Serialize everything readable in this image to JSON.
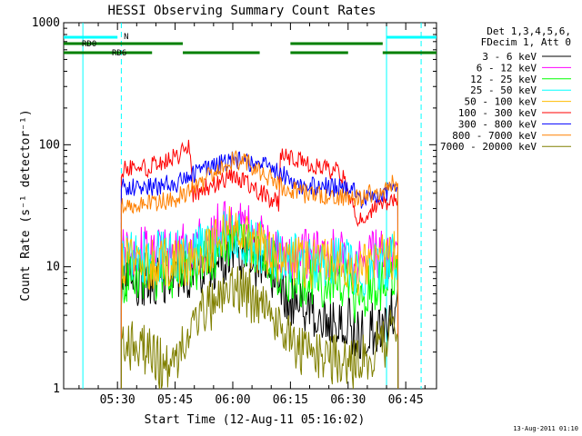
{
  "chart_data": {
    "type": "line",
    "title": "HESSI Observing Summary Count Rates",
    "xlabel": "Start Time (12-Aug-11 05:16:02)",
    "ylabel": "Count Rate (s⁻¹ detector⁻¹)",
    "y_scale": "log",
    "ylim": [
      1,
      1000
    ],
    "y_ticks": [
      "1",
      "10",
      "100",
      "1000"
    ],
    "x_range_minutes": [
      "05:16",
      "06:53"
    ],
    "x_ticks": [
      "05:30",
      "05:45",
      "06:00",
      "06:15",
      "06:30",
      "06:45"
    ],
    "footer_date": "13-Aug-2011 01:10",
    "legend": {
      "header_line1": "Det 1,3,4,5,6,",
      "header_line2": "FDecim 1, Att 0",
      "placement": "right"
    },
    "series": [
      {
        "name": "3 - 6 keV",
        "color": "#000000",
        "x": [
          "05:31",
          "05:38",
          "05:45",
          "05:52",
          "05:56",
          "06:00",
          "06:04",
          "06:08",
          "06:12",
          "06:15",
          "06:20",
          "06:25",
          "06:30",
          "06:32",
          "06:36",
          "06:41",
          "06:43"
        ],
        "values": [
          7,
          8,
          8,
          9.5,
          11,
          13,
          12,
          9,
          6.5,
          5,
          4.5,
          4,
          3.8,
          2.7,
          3,
          4,
          5
        ]
      },
      {
        "name": "6 - 12 keV",
        "color": "#ff00ff",
        "x": [
          "05:31",
          "05:38",
          "05:45",
          "05:52",
          "05:56",
          "06:00",
          "06:04",
          "06:08",
          "06:12",
          "06:15",
          "06:20",
          "06:25",
          "06:30",
          "06:32",
          "06:36",
          "06:41",
          "06:43"
        ],
        "values": [
          13,
          13,
          13,
          16,
          20,
          23,
          20,
          16,
          14,
          13,
          12.5,
          12.5,
          12.5,
          9.5,
          12,
          13,
          14
        ]
      },
      {
        "name": "12 - 25 keV",
        "color": "#00ff00",
        "x": [
          "05:31",
          "05:38",
          "05:45",
          "05:52",
          "05:56",
          "06:00",
          "06:04",
          "06:08",
          "06:12",
          "06:15",
          "06:20",
          "06:25",
          "06:30",
          "06:32",
          "06:36",
          "06:41",
          "06:43"
        ],
        "values": [
          8,
          8.5,
          9,
          11,
          13.5,
          16,
          14.5,
          12,
          9.5,
          8,
          7.5,
          7.5,
          7.5,
          5.5,
          6.5,
          8,
          9
        ]
      },
      {
        "name": "25 - 50 keV",
        "color": "#00ffff",
        "x": [
          "05:31",
          "05:38",
          "05:45",
          "05:52",
          "05:56",
          "06:00",
          "06:04",
          "06:08",
          "06:12",
          "06:15",
          "06:20",
          "06:25",
          "06:30",
          "06:32",
          "06:36",
          "06:41",
          "06:43"
        ],
        "values": [
          12,
          12,
          12,
          14,
          17,
          19,
          16.5,
          14,
          12,
          11.5,
          11,
          11,
          11,
          8.5,
          9.5,
          11,
          12
        ]
      },
      {
        "name": "50 - 100 keV",
        "color": "#ffbb00",
        "x": [
          "05:31",
          "05:38",
          "05:45",
          "05:52",
          "05:56",
          "06:00",
          "06:04",
          "06:08",
          "06:12",
          "06:15",
          "06:20",
          "06:25",
          "06:30",
          "06:32",
          "06:36",
          "06:41",
          "06:43"
        ],
        "values": [
          10.5,
          10.5,
          10.5,
          12.5,
          16,
          21,
          17,
          13,
          11,
          10.5,
          10.5,
          10.5,
          10.5,
          8.5,
          10.5,
          12.5,
          14
        ]
      },
      {
        "name": "100 - 300 keV",
        "color": "#ff0000",
        "x": [
          "05:31",
          "05:38",
          "05:45",
          "05:49",
          "05:49.5",
          "05:55",
          "06:00",
          "06:05",
          "06:10",
          "06:12",
          "06:12.5",
          "06:20",
          "06:28",
          "06:32",
          "06:35",
          "06:40",
          "06:43"
        ],
        "values": [
          62,
          65,
          78,
          95,
          40,
          47,
          58,
          46,
          36,
          34,
          88,
          67,
          60,
          26,
          27,
          34,
          38
        ]
      },
      {
        "name": "300 - 800 keV",
        "color": "#0000ff",
        "x": [
          "05:31",
          "05:38",
          "05:45",
          "05:49",
          "05:55",
          "06:00",
          "06:05",
          "06:12",
          "06:17",
          "06:25",
          "06:32",
          "06:33",
          "06:38",
          "06:42",
          "06:43"
        ],
        "values": [
          44,
          45,
          48,
          55,
          67,
          76,
          72,
          60,
          47,
          45,
          44,
          35,
          38,
          45,
          48
        ]
      },
      {
        "name": "800 - 7000 keV",
        "color": "#ff8000",
        "x": [
          "05:31",
          "05:38",
          "05:45",
          "05:52",
          "05:56",
          "06:00",
          "06:04",
          "06:08",
          "06:12",
          "06:18",
          "06:25",
          "06:32",
          "06:36",
          "06:40",
          "06:43"
        ],
        "values": [
          32,
          33,
          36,
          48,
          64,
          76,
          70,
          58,
          47,
          40,
          38,
          36,
          40,
          45,
          50
        ]
      },
      {
        "name": "7000 - 20000 keV",
        "color": "#808000",
        "x": [
          "05:31",
          "05:38",
          "05:42",
          "05:47",
          "05:52",
          "05:56",
          "06:00",
          "06:04",
          "06:08",
          "06:13",
          "06:18",
          "06:25",
          "06:31",
          "06:36",
          "06:40",
          "06:43"
        ],
        "values": [
          2.5,
          2,
          1.5,
          2,
          4,
          5.5,
          6.5,
          6,
          4.5,
          3,
          2,
          1.8,
          1.6,
          2,
          2.5,
          3.5
        ]
      }
    ],
    "annotations": {
      "attenuator_bar": {
        "label": "N",
        "color": "#00ffff",
        "segments": [
          [
            "05:16",
            "05:30"
          ],
          [
            "06:40",
            "06:53"
          ]
        ]
      },
      "rdo_bar": {
        "label": "RD0",
        "color": "#008000",
        "segments": [
          [
            "05:16",
            "05:47"
          ],
          [
            "06:15",
            "06:39"
          ]
        ]
      },
      "rd6_bar": {
        "label": "RD6",
        "color": "#008000",
        "segments": [
          [
            "05:16",
            "05:39"
          ],
          [
            "05:47",
            "06:07"
          ],
          [
            "06:15",
            "06:30"
          ],
          [
            "06:39",
            "06:53"
          ]
        ]
      },
      "cyan_solid_lines": [
        "05:21",
        "06:40"
      ],
      "cyan_dashed_lines": [
        "05:31",
        "06:49"
      ]
    }
  }
}
